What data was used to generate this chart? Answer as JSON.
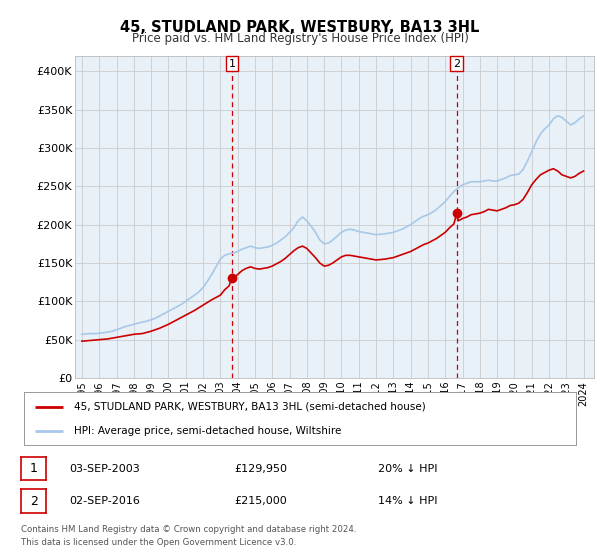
{
  "title": "45, STUDLAND PARK, WESTBURY, BA13 3HL",
  "subtitle": "Price paid vs. HM Land Registry's House Price Index (HPI)",
  "hpi_color": "#a8c8e8",
  "price_color": "#cc0000",
  "marker_color": "#cc0000",
  "vline_color": "#cc0000",
  "background_color": "#ffffff",
  "grid_color": "#cccccc",
  "ylim": [
    0,
    420000
  ],
  "yticks": [
    0,
    50000,
    100000,
    150000,
    200000,
    250000,
    300000,
    350000,
    400000
  ],
  "ytick_labels": [
    "£0",
    "£50K",
    "£100K",
    "£150K",
    "£200K",
    "£250K",
    "£300K",
    "£350K",
    "£400K"
  ],
  "xlim_left": 1994.6,
  "xlim_right": 2024.6,
  "sale1_x": 2003.67,
  "sale1_y": 129950,
  "sale2_x": 2016.67,
  "sale2_y": 215000,
  "legend_line1": "45, STUDLAND PARK, WESTBURY, BA13 3HL (semi-detached house)",
  "legend_line2": "HPI: Average price, semi-detached house, Wiltshire",
  "table_row1_num": "1",
  "table_row1_date": "03-SEP-2003",
  "table_row1_price": "£129,950",
  "table_row1_hpi": "20% ↓ HPI",
  "table_row2_num": "2",
  "table_row2_date": "02-SEP-2016",
  "table_row2_price": "£215,000",
  "table_row2_hpi": "14% ↓ HPI",
  "footnote1": "Contains HM Land Registry data © Crown copyright and database right 2024.",
  "footnote2": "This data is licensed under the Open Government Licence v3.0.",
  "hpi_data": [
    [
      1995.0,
      57000
    ],
    [
      1995.25,
      57500
    ],
    [
      1995.5,
      58000
    ],
    [
      1995.75,
      57800
    ],
    [
      1996.0,
      58500
    ],
    [
      1996.25,
      59000
    ],
    [
      1996.5,
      60000
    ],
    [
      1996.75,
      61000
    ],
    [
      1997.0,
      63000
    ],
    [
      1997.25,
      65000
    ],
    [
      1997.5,
      67000
    ],
    [
      1997.75,
      68500
    ],
    [
      1998.0,
      70000
    ],
    [
      1998.25,
      71500
    ],
    [
      1998.5,
      73000
    ],
    [
      1998.75,
      74000
    ],
    [
      1999.0,
      76000
    ],
    [
      1999.25,
      78000
    ],
    [
      1999.5,
      81000
    ],
    [
      1999.75,
      84000
    ],
    [
      2000.0,
      87000
    ],
    [
      2000.25,
      90000
    ],
    [
      2000.5,
      93000
    ],
    [
      2000.75,
      96000
    ],
    [
      2001.0,
      100000
    ],
    [
      2001.25,
      104000
    ],
    [
      2001.5,
      108000
    ],
    [
      2001.75,
      112000
    ],
    [
      2002.0,
      118000
    ],
    [
      2002.25,
      126000
    ],
    [
      2002.5,
      135000
    ],
    [
      2002.75,
      145000
    ],
    [
      2003.0,
      155000
    ],
    [
      2003.25,
      160000
    ],
    [
      2003.5,
      162000
    ],
    [
      2003.75,
      163000
    ],
    [
      2004.0,
      165000
    ],
    [
      2004.25,
      168000
    ],
    [
      2004.5,
      170000
    ],
    [
      2004.75,
      172000
    ],
    [
      2005.0,
      170000
    ],
    [
      2005.25,
      169000
    ],
    [
      2005.5,
      170000
    ],
    [
      2005.75,
      171000
    ],
    [
      2006.0,
      173000
    ],
    [
      2006.25,
      176000
    ],
    [
      2006.5,
      180000
    ],
    [
      2006.75,
      184000
    ],
    [
      2007.0,
      190000
    ],
    [
      2007.25,
      196000
    ],
    [
      2007.5,
      205000
    ],
    [
      2007.75,
      210000
    ],
    [
      2008.0,
      205000
    ],
    [
      2008.25,
      198000
    ],
    [
      2008.5,
      190000
    ],
    [
      2008.75,
      180000
    ],
    [
      2009.0,
      175000
    ],
    [
      2009.25,
      176000
    ],
    [
      2009.5,
      180000
    ],
    [
      2009.75,
      185000
    ],
    [
      2010.0,
      190000
    ],
    [
      2010.25,
      193000
    ],
    [
      2010.5,
      194000
    ],
    [
      2010.75,
      193000
    ],
    [
      2011.0,
      191000
    ],
    [
      2011.25,
      190000
    ],
    [
      2011.5,
      189000
    ],
    [
      2011.75,
      188000
    ],
    [
      2012.0,
      187000
    ],
    [
      2012.25,
      187500
    ],
    [
      2012.5,
      188000
    ],
    [
      2012.75,
      189000
    ],
    [
      2013.0,
      190000
    ],
    [
      2013.25,
      192000
    ],
    [
      2013.5,
      194000
    ],
    [
      2013.75,
      197000
    ],
    [
      2014.0,
      200000
    ],
    [
      2014.25,
      204000
    ],
    [
      2014.5,
      208000
    ],
    [
      2014.75,
      211000
    ],
    [
      2015.0,
      213000
    ],
    [
      2015.25,
      216000
    ],
    [
      2015.5,
      220000
    ],
    [
      2015.75,
      225000
    ],
    [
      2016.0,
      230000
    ],
    [
      2016.25,
      237000
    ],
    [
      2016.5,
      243000
    ],
    [
      2016.75,
      248000
    ],
    [
      2017.0,
      252000
    ],
    [
      2017.25,
      254000
    ],
    [
      2017.5,
      256000
    ],
    [
      2017.75,
      256000
    ],
    [
      2018.0,
      256000
    ],
    [
      2018.25,
      257000
    ],
    [
      2018.5,
      258000
    ],
    [
      2018.75,
      257000
    ],
    [
      2019.0,
      257000
    ],
    [
      2019.25,
      259000
    ],
    [
      2019.5,
      261000
    ],
    [
      2019.75,
      264000
    ],
    [
      2020.0,
      265000
    ],
    [
      2020.25,
      266000
    ],
    [
      2020.5,
      272000
    ],
    [
      2020.75,
      283000
    ],
    [
      2021.0,
      295000
    ],
    [
      2021.25,
      308000
    ],
    [
      2021.5,
      318000
    ],
    [
      2021.75,
      325000
    ],
    [
      2022.0,
      330000
    ],
    [
      2022.25,
      338000
    ],
    [
      2022.5,
      342000
    ],
    [
      2022.75,
      340000
    ],
    [
      2023.0,
      335000
    ],
    [
      2023.25,
      330000
    ],
    [
      2023.5,
      333000
    ],
    [
      2023.75,
      338000
    ],
    [
      2024.0,
      342000
    ]
  ],
  "price_data": [
    [
      1995.0,
      48000
    ],
    [
      1995.5,
      49000
    ],
    [
      1996.0,
      50000
    ],
    [
      1996.5,
      51000
    ],
    [
      1997.0,
      53000
    ],
    [
      1997.5,
      55000
    ],
    [
      1998.0,
      57000
    ],
    [
      1998.5,
      58000
    ],
    [
      1999.0,
      61000
    ],
    [
      1999.5,
      65000
    ],
    [
      2000.0,
      70000
    ],
    [
      2000.5,
      76000
    ],
    [
      2001.0,
      82000
    ],
    [
      2001.5,
      88000
    ],
    [
      2002.0,
      95000
    ],
    [
      2002.5,
      102000
    ],
    [
      2003.0,
      108000
    ],
    [
      2003.25,
      115000
    ],
    [
      2003.5,
      120000
    ],
    [
      2003.67,
      129950
    ],
    [
      2003.75,
      130000
    ],
    [
      2004.0,
      135000
    ],
    [
      2004.25,
      140000
    ],
    [
      2004.5,
      143000
    ],
    [
      2004.75,
      145000
    ],
    [
      2005.0,
      143000
    ],
    [
      2005.25,
      142000
    ],
    [
      2005.5,
      143000
    ],
    [
      2005.75,
      144000
    ],
    [
      2006.0,
      146000
    ],
    [
      2006.25,
      149000
    ],
    [
      2006.5,
      152000
    ],
    [
      2006.75,
      156000
    ],
    [
      2007.0,
      161000
    ],
    [
      2007.25,
      166000
    ],
    [
      2007.5,
      170000
    ],
    [
      2007.75,
      172000
    ],
    [
      2008.0,
      169000
    ],
    [
      2008.25,
      163000
    ],
    [
      2008.5,
      157000
    ],
    [
      2008.75,
      150000
    ],
    [
      2009.0,
      146000
    ],
    [
      2009.25,
      147000
    ],
    [
      2009.5,
      150000
    ],
    [
      2009.75,
      154000
    ],
    [
      2010.0,
      158000
    ],
    [
      2010.25,
      160000
    ],
    [
      2010.5,
      160000
    ],
    [
      2010.75,
      159000
    ],
    [
      2011.0,
      158000
    ],
    [
      2011.25,
      157000
    ],
    [
      2011.5,
      156000
    ],
    [
      2011.75,
      155000
    ],
    [
      2012.0,
      154000
    ],
    [
      2012.25,
      154500
    ],
    [
      2012.5,
      155000
    ],
    [
      2012.75,
      156000
    ],
    [
      2013.0,
      157000
    ],
    [
      2013.25,
      159000
    ],
    [
      2013.5,
      161000
    ],
    [
      2013.75,
      163000
    ],
    [
      2014.0,
      165000
    ],
    [
      2014.25,
      168000
    ],
    [
      2014.5,
      171000
    ],
    [
      2014.75,
      174000
    ],
    [
      2015.0,
      176000
    ],
    [
      2015.25,
      179000
    ],
    [
      2015.5,
      182000
    ],
    [
      2015.75,
      186000
    ],
    [
      2016.0,
      190000
    ],
    [
      2016.25,
      196000
    ],
    [
      2016.5,
      201000
    ],
    [
      2016.67,
      215000
    ],
    [
      2016.75,
      205000
    ],
    [
      2017.0,
      208000
    ],
    [
      2017.25,
      210000
    ],
    [
      2017.5,
      213000
    ],
    [
      2017.75,
      214000
    ],
    [
      2018.0,
      215000
    ],
    [
      2018.25,
      217000
    ],
    [
      2018.5,
      220000
    ],
    [
      2018.75,
      219000
    ],
    [
      2019.0,
      218000
    ],
    [
      2019.25,
      220000
    ],
    [
      2019.5,
      222000
    ],
    [
      2019.75,
      225000
    ],
    [
      2020.0,
      226000
    ],
    [
      2020.25,
      228000
    ],
    [
      2020.5,
      233000
    ],
    [
      2020.75,
      242000
    ],
    [
      2021.0,
      252000
    ],
    [
      2021.25,
      259000
    ],
    [
      2021.5,
      265000
    ],
    [
      2021.75,
      268000
    ],
    [
      2022.0,
      271000
    ],
    [
      2022.25,
      273000
    ],
    [
      2022.5,
      270000
    ],
    [
      2022.75,
      265000
    ],
    [
      2023.0,
      263000
    ],
    [
      2023.25,
      261000
    ],
    [
      2023.5,
      263000
    ],
    [
      2023.75,
      267000
    ],
    [
      2024.0,
      270000
    ]
  ]
}
